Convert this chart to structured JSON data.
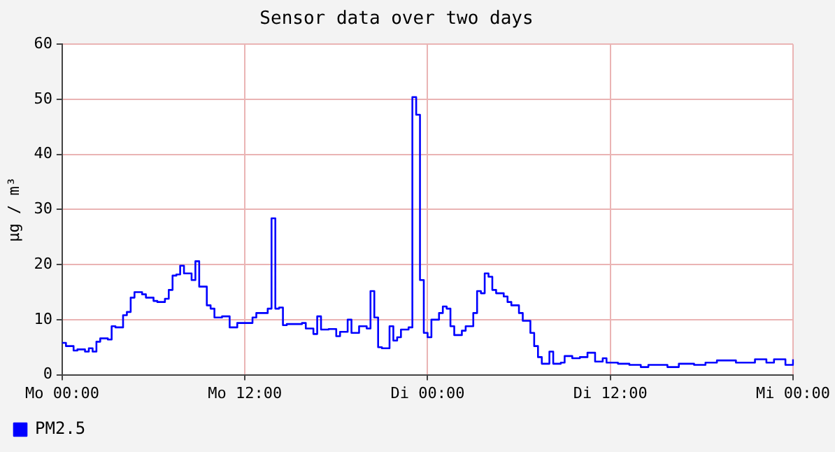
{
  "chart_data": {
    "type": "step",
    "title": "Sensor data over two days",
    "ylabel": "µg / m³",
    "categories": [
      "Mo 00:00",
      null,
      null,
      null,
      null,
      null,
      null,
      null,
      null,
      null,
      null,
      null,
      null,
      null,
      null,
      null,
      null,
      null,
      null,
      null,
      null,
      null,
      null,
      null,
      null,
      null,
      null,
      null,
      null,
      null,
      null,
      null,
      null,
      null,
      null,
      null,
      null,
      null,
      null,
      null,
      null,
      null,
      null,
      null,
      null,
      null,
      null,
      null,
      "Mo 12:00",
      null,
      null,
      null,
      null,
      null,
      null,
      null,
      null,
      null,
      null,
      null,
      null,
      null,
      null,
      null,
      null,
      null,
      null,
      null,
      null,
      null,
      null,
      null,
      null,
      null,
      null,
      null,
      null,
      null,
      null,
      null,
      null,
      null,
      null,
      null,
      null,
      null,
      null,
      null,
      null,
      null,
      null,
      null,
      null,
      null,
      null,
      null,
      "Di 00:00",
      null,
      null,
      null,
      null,
      null,
      null,
      null,
      null,
      null,
      null,
      null,
      null,
      null,
      null,
      null,
      null,
      null,
      null,
      null,
      null,
      null,
      null,
      null,
      null,
      null,
      null,
      null,
      null,
      null,
      null,
      null,
      null,
      null,
      null,
      null,
      null,
      null,
      null,
      null,
      null,
      null,
      null,
      null,
      null,
      null,
      null,
      null,
      "Di 12:00",
      null,
      null,
      null,
      null,
      null,
      null,
      null,
      null,
      null,
      null,
      null,
      null,
      null,
      null,
      null,
      null,
      null,
      null,
      null,
      null,
      null,
      null,
      null,
      null,
      null,
      null,
      null,
      null,
      null,
      null,
      null,
      null,
      null,
      null,
      null,
      null,
      null,
      null,
      null,
      null,
      null,
      null,
      null,
      null,
      null,
      null,
      null,
      "Mi 00:00"
    ],
    "ylim": [
      0,
      60
    ],
    "yticks": [
      0,
      10,
      20,
      30,
      40,
      50,
      60
    ],
    "grid": true,
    "legend": "bottom left",
    "marker": "none",
    "line_style": "solid",
    "series": [
      {
        "name": "PM2.5",
        "color": "#0000ff",
        "values": [
          5.8,
          5.2,
          5.2,
          4.4,
          4.6,
          4.6,
          4.2,
          4.8,
          4.2,
          6.0,
          6.6,
          6.6,
          6.4,
          8.8,
          8.6,
          8.6,
          10.8,
          11.4,
          14,
          15,
          15,
          14.6,
          14,
          14,
          13.4,
          13.2,
          13.2,
          13.8,
          15.4,
          18,
          18.2,
          19.8,
          18.4,
          18.4,
          17.2,
          20.6,
          16,
          16,
          12.6,
          12,
          10.4,
          10.4,
          10.6,
          10.6,
          8.6,
          8.6,
          9.4,
          9.4,
          9.4,
          9.4,
          10.4,
          11.2,
          11.2,
          11.2,
          12,
          28.4,
          12,
          12.2,
          9,
          9.2,
          9.2,
          9.2,
          9.2,
          9.4,
          8.4,
          8.4,
          7.4,
          10.6,
          8.2,
          8.2,
          8.3,
          8.3,
          7.0,
          7.8,
          7.8,
          10,
          7.6,
          7.6,
          8.8,
          8.8,
          8.4,
          15.2,
          10.4,
          5.0,
          4.8,
          4.8,
          8.8,
          6.2,
          6.8,
          8.2,
          8.2,
          8.6,
          50.4,
          47.2,
          17.2,
          7.6,
          6.8,
          10,
          10,
          11.2,
          12.4,
          12,
          8.8,
          7.2,
          7.2,
          8,
          8.8,
          8.8,
          11.2,
          15.2,
          14.8,
          18.4,
          17.8,
          15.4,
          14.8,
          14.8,
          14.2,
          13.2,
          12.6,
          12.6,
          11.2,
          9.8,
          9.8,
          7.6,
          5.2,
          3.2,
          2.0,
          2.0,
          4.2,
          2.0,
          2.0,
          2.2,
          3.4,
          3.4,
          3.0,
          3.0,
          3.2,
          3.2,
          4.0,
          4.0,
          2.4,
          2.4,
          3.0,
          2.2,
          2.2,
          2.2,
          2.0,
          2.0,
          2.0,
          1.8,
          1.8,
          1.8,
          1.4,
          1.4,
          1.8,
          1.8,
          1.8,
          1.8,
          1.8,
          1.4,
          1.4,
          1.4,
          2.0,
          2.0,
          2.0,
          2.0,
          1.8,
          1.8,
          1.8,
          2.2,
          2.2,
          2.2,
          2.6,
          2.6,
          2.6,
          2.6,
          2.6,
          2.2,
          2.2,
          2.2,
          2.2,
          2.2,
          2.8,
          2.8,
          2.8,
          2.2,
          2.2,
          2.8,
          2.8,
          2.8,
          1.8,
          1.8,
          2.8
        ]
      }
    ]
  }
}
